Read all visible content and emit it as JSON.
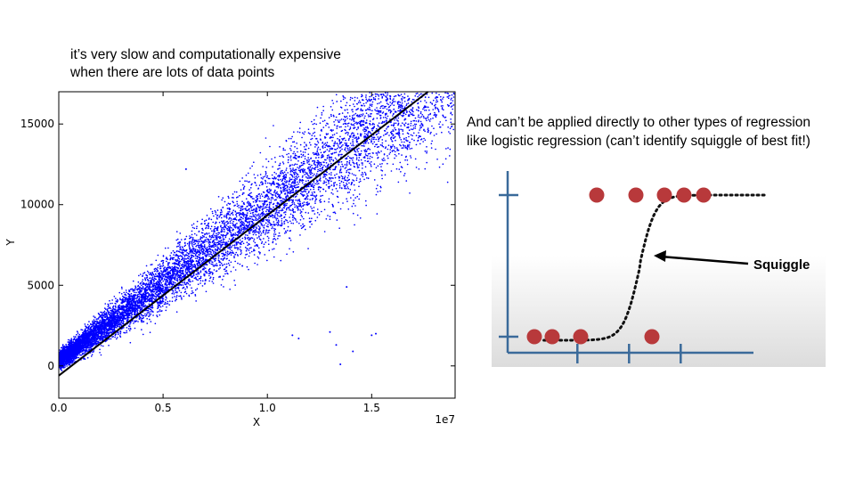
{
  "slide": {
    "left_caption_lines": [
      "it’s very slow and computationally expensive",
      "when there are lots of data points"
    ],
    "right_caption_lines": [
      "And can’t be applied directly to other types of regression",
      "like logistic regression (can’t identify squiggle of best fit!)"
    ]
  },
  "chart_data": [
    {
      "type": "scatter",
      "title": "",
      "xlabel": "X",
      "ylabel": "Y",
      "x_scale_label": "1e7",
      "xlim": [
        0.0,
        1.9
      ],
      "ylim": [
        -2000,
        17000
      ],
      "x_ticks": [
        "0.0",
        "0.5",
        "1.0",
        "1.5"
      ],
      "x_tick_values": [
        0.0,
        0.5,
        1.0,
        1.5
      ],
      "y_ticks": [
        "0",
        "5000",
        "10000",
        "15000"
      ],
      "y_tick_values": [
        0,
        5000,
        10000,
        15000
      ],
      "grid": false,
      "point_color": "#0000ff",
      "line_color": "#000000",
      "regression_line": {
        "x": [
          0.0,
          1.77
        ],
        "y": [
          -600,
          17000
        ]
      },
      "point_count_estimate": 10000,
      "point_distribution": "dense near origin, fanning out with slope ~9600 per unit x, spread increasing with x up to 1.9",
      "outliers": [
        {
          "x": 0.61,
          "y": 12200
        },
        {
          "x": 1.12,
          "y": 1900
        },
        {
          "x": 1.15,
          "y": 1700
        },
        {
          "x": 1.3,
          "y": 2100
        },
        {
          "x": 1.33,
          "y": 1300
        },
        {
          "x": 1.35,
          "y": 100
        },
        {
          "x": 1.41,
          "y": 900
        },
        {
          "x": 1.5,
          "y": 1900
        },
        {
          "x": 1.52,
          "y": 2000
        },
        {
          "x": 0.88,
          "y": 6200
        },
        {
          "x": 1.38,
          "y": 4900
        }
      ]
    },
    {
      "type": "scatter",
      "title": "",
      "annotation": "Squiggle",
      "xlabel": "",
      "ylabel": "",
      "grid": false,
      "point_color": "#b8393b",
      "axis_color": "#3a6a9a",
      "curve_style": "dotted black logistic curve",
      "points": [
        {
          "x": 0.6,
          "level": 0
        },
        {
          "x": 1.0,
          "level": 0
        },
        {
          "x": 1.65,
          "level": 0
        },
        {
          "x": 3.25,
          "level": 0
        },
        {
          "x": 2.0,
          "level": 1
        },
        {
          "x": 2.9,
          "level": 1
        },
        {
          "x": 3.5,
          "level": 1
        },
        {
          "x": 4.0,
          "level": 1
        },
        {
          "x": 4.45,
          "level": 1
        }
      ]
    }
  ]
}
